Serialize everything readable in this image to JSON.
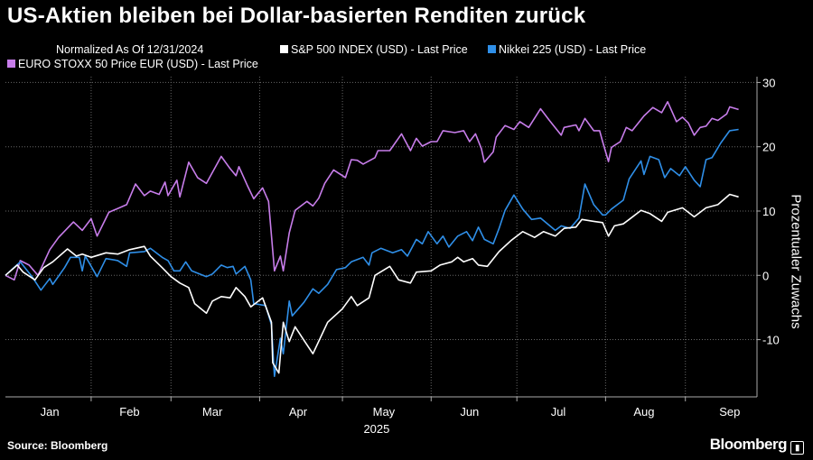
{
  "title": "US-Aktien bleiben bei Dollar-basierten Renditen zurück",
  "footer": {
    "source": "Source: Bloomberg",
    "logo": "Bloomberg"
  },
  "chart_data": {
    "type": "line",
    "title": "US-Aktien bleiben bei Dollar-basierten Renditen zurück",
    "subtitle": "Normalized As Of 12/31/2024",
    "ylabel": "Prozentualer Zuwachs",
    "xlabel": "2025",
    "ylim": [
      -18.9,
      30.9
    ],
    "xlim": [
      0,
      253
    ],
    "yticks": [
      30,
      20,
      10,
      0,
      -10
    ],
    "grid": true,
    "legend_position": "top",
    "xticks": [
      {
        "label": "Jan",
        "x": 15
      },
      {
        "label": "Feb",
        "x": 42
      },
      {
        "label": "Mar",
        "x": 70
      },
      {
        "label": "Apr",
        "x": 99
      },
      {
        "label": "May",
        "x": 128
      },
      {
        "label": "Jun",
        "x": 157
      },
      {
        "label": "Jul",
        "x": 187
      },
      {
        "label": "Aug",
        "x": 216
      },
      {
        "label": "Sep",
        "x": 245
      }
    ],
    "month_boundaries": [
      29,
      56,
      86,
      114,
      144,
      173,
      203,
      230
    ],
    "series": [
      {
        "name": "S&P 500 INDEX (USD) - Last Price",
        "color": "#ffffff",
        "points": [
          [
            0,
            0
          ],
          [
            4,
            1.6
          ],
          [
            6,
            0.5
          ],
          [
            10,
            -0.7
          ],
          [
            13,
            1.2
          ],
          [
            16,
            2.1
          ],
          [
            21,
            4.1
          ],
          [
            24,
            3
          ],
          [
            26,
            3.3
          ],
          [
            29,
            2.8
          ],
          [
            34,
            3.5
          ],
          [
            38,
            3.3
          ],
          [
            42,
            4
          ],
          [
            47,
            4.5
          ],
          [
            49,
            3
          ],
          [
            53,
            1.2
          ],
          [
            56,
            -0.2
          ],
          [
            59,
            -1.2
          ],
          [
            62,
            -1.9
          ],
          [
            64,
            -4.4
          ],
          [
            68,
            -5.9
          ],
          [
            70,
            -4
          ],
          [
            73,
            -3.3
          ],
          [
            76,
            -3.5
          ],
          [
            78,
            -1.9
          ],
          [
            81,
            -3.3
          ],
          [
            83,
            -4.9
          ],
          [
            87,
            -3.5
          ],
          [
            90,
            -7.3
          ],
          [
            90.4,
            -13.6
          ],
          [
            92.5,
            -15.2
          ],
          [
            94,
            -7.3
          ],
          [
            96,
            -10.3
          ],
          [
            98,
            -8
          ],
          [
            101,
            -10.1
          ],
          [
            104,
            -12.2
          ],
          [
            109,
            -7.3
          ],
          [
            114,
            -5.2
          ],
          [
            117,
            -3.3
          ],
          [
            119,
            -4.7
          ],
          [
            123,
            -3.5
          ],
          [
            125,
            0
          ],
          [
            130,
            1.4
          ],
          [
            133,
            -0.7
          ],
          [
            137,
            -1.2
          ],
          [
            139,
            0.5
          ],
          [
            144,
            0.7
          ],
          [
            147,
            1.6
          ],
          [
            151,
            2.1
          ],
          [
            153,
            2.8
          ],
          [
            155,
            2.1
          ],
          [
            158,
            2.6
          ],
          [
            160,
            1.6
          ],
          [
            163,
            1.4
          ],
          [
            167,
            3.7
          ],
          [
            171,
            5.4
          ],
          [
            175,
            6.8
          ],
          [
            179,
            5.9
          ],
          [
            182,
            6.8
          ],
          [
            186,
            6.1
          ],
          [
            189,
            7.3
          ],
          [
            193,
            7.5
          ],
          [
            195,
            8.7
          ],
          [
            199,
            8.4
          ],
          [
            202,
            8.2
          ],
          [
            204,
            6.1
          ],
          [
            206,
            7.7
          ],
          [
            209,
            8
          ],
          [
            211,
            8.7
          ],
          [
            215,
            10.1
          ],
          [
            218,
            9.6
          ],
          [
            222,
            8.4
          ],
          [
            224,
            9.8
          ],
          [
            229,
            10.5
          ],
          [
            233,
            9.1
          ],
          [
            237,
            10.5
          ],
          [
            241,
            11
          ],
          [
            245,
            12.6
          ],
          [
            248,
            12.2
          ]
        ]
      },
      {
        "name": "Nikkei 225 (USD) - Last Price",
        "color": "#2f8fe8",
        "points": [
          [
            0,
            0
          ],
          [
            5,
            2.1
          ],
          [
            9,
            -0.2
          ],
          [
            12,
            -2.3
          ],
          [
            15,
            -0.5
          ],
          [
            16,
            -1.4
          ],
          [
            20,
            1.2
          ],
          [
            22,
            2.8
          ],
          [
            25,
            2.8
          ],
          [
            26,
            0.7
          ],
          [
            27,
            3
          ],
          [
            31,
            -0.2
          ],
          [
            34,
            2.6
          ],
          [
            38,
            2.3
          ],
          [
            41,
            1.4
          ],
          [
            42,
            3.5
          ],
          [
            47,
            3.7
          ],
          [
            49,
            4.2
          ],
          [
            53,
            2.8
          ],
          [
            55,
            2.3
          ],
          [
            57,
            0.7
          ],
          [
            59,
            0.7
          ],
          [
            61,
            2.1
          ],
          [
            63,
            0.7
          ],
          [
            68,
            -0.2
          ],
          [
            70,
            0.2
          ],
          [
            73,
            1.6
          ],
          [
            75,
            1.2
          ],
          [
            77,
            1.4
          ],
          [
            78,
            0.2
          ],
          [
            81,
            1.4
          ],
          [
            83,
            -0.7
          ],
          [
            84,
            -4.4
          ],
          [
            88,
            -4.7
          ],
          [
            90,
            -7.7
          ],
          [
            91,
            -15.7
          ],
          [
            93,
            -9.8
          ],
          [
            94,
            -12.2
          ],
          [
            96,
            -4
          ],
          [
            97,
            -6.3
          ],
          [
            101,
            -4.2
          ],
          [
            104,
            -2.1
          ],
          [
            106,
            -2.8
          ],
          [
            109,
            -1.4
          ],
          [
            112,
            0.9
          ],
          [
            115,
            1.2
          ],
          [
            117,
            2.1
          ],
          [
            121,
            2.8
          ],
          [
            123,
            1.6
          ],
          [
            124,
            3.5
          ],
          [
            127,
            4.2
          ],
          [
            131,
            3.5
          ],
          [
            134,
            4
          ],
          [
            136,
            3
          ],
          [
            139,
            5.6
          ],
          [
            141,
            4.9
          ],
          [
            143,
            6.8
          ],
          [
            146,
            4.9
          ],
          [
            148,
            6.1
          ],
          [
            150,
            4.4
          ],
          [
            153,
            6.1
          ],
          [
            156,
            6.8
          ],
          [
            158,
            5.4
          ],
          [
            160,
            7.5
          ],
          [
            162,
            5.6
          ],
          [
            165,
            4.9
          ],
          [
            167,
            7.3
          ],
          [
            169,
            10.1
          ],
          [
            172,
            12.5
          ],
          [
            175,
            10.3
          ],
          [
            178,
            8.7
          ],
          [
            181,
            8.9
          ],
          [
            186,
            7
          ],
          [
            188,
            7.7
          ],
          [
            191,
            7.3
          ],
          [
            194,
            8.9
          ],
          [
            196,
            14.2
          ],
          [
            199,
            11
          ],
          [
            202,
            9.4
          ],
          [
            203,
            9.4
          ],
          [
            205,
            10.3
          ],
          [
            209,
            11.7
          ],
          [
            211,
            15
          ],
          [
            215,
            17.8
          ],
          [
            216,
            15.7
          ],
          [
            218,
            18.5
          ],
          [
            221,
            18
          ],
          [
            223,
            15.2
          ],
          [
            225,
            16.6
          ],
          [
            228,
            15.5
          ],
          [
            230,
            16.9
          ],
          [
            233,
            14.8
          ],
          [
            235,
            13.8
          ],
          [
            237,
            18
          ],
          [
            239,
            18.3
          ],
          [
            242,
            20.6
          ],
          [
            245,
            22.5
          ],
          [
            248,
            22.7
          ]
        ]
      },
      {
        "name": "EURO STOXX 50 Price EUR (USD) - Last Price",
        "color": "#c77dea",
        "points": [
          [
            0,
            0
          ],
          [
            3,
            -0.7
          ],
          [
            5,
            2.3
          ],
          [
            8,
            1.6
          ],
          [
            11,
            0
          ],
          [
            15,
            4
          ],
          [
            18,
            5.9
          ],
          [
            23,
            8.3
          ],
          [
            26,
            7
          ],
          [
            29,
            8.8
          ],
          [
            31,
            6.1
          ],
          [
            35,
            9.8
          ],
          [
            41,
            11
          ],
          [
            44,
            14.2
          ],
          [
            47,
            12.4
          ],
          [
            49,
            13.1
          ],
          [
            52,
            12.6
          ],
          [
            54,
            14.5
          ],
          [
            55,
            12.4
          ],
          [
            58,
            14.8
          ],
          [
            59,
            12.2
          ],
          [
            62,
            17.6
          ],
          [
            65,
            15.2
          ],
          [
            68,
            14.3
          ],
          [
            73,
            18.5
          ],
          [
            76,
            16.6
          ],
          [
            78,
            15.5
          ],
          [
            79,
            16.9
          ],
          [
            82,
            13.8
          ],
          [
            84,
            11.9
          ],
          [
            87,
            13.6
          ],
          [
            89,
            11.5
          ],
          [
            91,
            0.7
          ],
          [
            93,
            3
          ],
          [
            94,
            0.7
          ],
          [
            96,
            6.6
          ],
          [
            98,
            10.1
          ],
          [
            102,
            11.5
          ],
          [
            104,
            10.8
          ],
          [
            106,
            12
          ],
          [
            108,
            14.3
          ],
          [
            111,
            16.4
          ],
          [
            115,
            15.2
          ],
          [
            117,
            18
          ],
          [
            119,
            17.9
          ],
          [
            121,
            17.3
          ],
          [
            125,
            18.3
          ],
          [
            126,
            19.4
          ],
          [
            130,
            19.4
          ],
          [
            134,
            22
          ],
          [
            137,
            19.4
          ],
          [
            139,
            21.3
          ],
          [
            141,
            20.1
          ],
          [
            144,
            20.8
          ],
          [
            146,
            20.8
          ],
          [
            148,
            22.5
          ],
          [
            152,
            22.2
          ],
          [
            155,
            22.5
          ],
          [
            157,
            20.8
          ],
          [
            159,
            22
          ],
          [
            161,
            19.7
          ],
          [
            162,
            17.6
          ],
          [
            165,
            19.2
          ],
          [
            166,
            21.5
          ],
          [
            169,
            23.3
          ],
          [
            172,
            22.7
          ],
          [
            174,
            23.9
          ],
          [
            177,
            23
          ],
          [
            181,
            25.9
          ],
          [
            184,
            24.1
          ],
          [
            188,
            21.8
          ],
          [
            189,
            23
          ],
          [
            193,
            23.4
          ],
          [
            194,
            22.5
          ],
          [
            196,
            24.4
          ],
          [
            199,
            22.5
          ],
          [
            201,
            22.5
          ],
          [
            202,
            20.8
          ],
          [
            204,
            17.7
          ],
          [
            205,
            19.9
          ],
          [
            208,
            20.8
          ],
          [
            210,
            23
          ],
          [
            212,
            22.5
          ],
          [
            216,
            24.8
          ],
          [
            219,
            26.1
          ],
          [
            222,
            25.3
          ],
          [
            224,
            27
          ],
          [
            227,
            23.9
          ],
          [
            229,
            24.6
          ],
          [
            231,
            23.7
          ],
          [
            233,
            21.8
          ],
          [
            235,
            23
          ],
          [
            237,
            23.2
          ],
          [
            239,
            24.4
          ],
          [
            241,
            24.1
          ],
          [
            244,
            25.1
          ],
          [
            245,
            26.2
          ],
          [
            248,
            25.8
          ]
        ]
      }
    ]
  }
}
